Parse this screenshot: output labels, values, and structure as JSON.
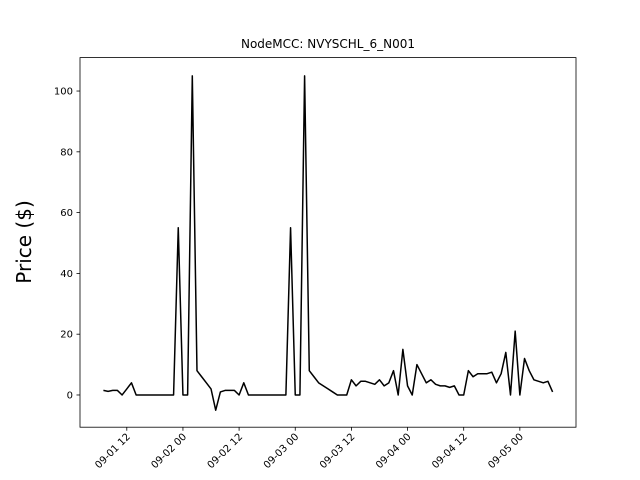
{
  "chart_data": {
    "type": "line",
    "title": "NodeMCC: NVYSCHL_6_N001",
    "y_label": "Price ($)",
    "color": "#000000",
    "x": [
      "09-01 07",
      "09-01 08",
      "09-01 09",
      "09-01 10",
      "09-01 11",
      "09-01 12",
      "09-01 13",
      "09-01 14",
      "09-01 15",
      "09-01 16",
      "09-01 17",
      "09-01 18",
      "09-01 19",
      "09-01 20",
      "09-01 21",
      "09-01 22",
      "09-01 23",
      "09-02 00",
      "09-02 01",
      "09-02 02",
      "09-02 03",
      "09-02 04",
      "09-02 05",
      "09-02 06",
      "09-02 07",
      "09-02 08",
      "09-02 09",
      "09-02 10",
      "09-02 11",
      "09-02 12",
      "09-02 13",
      "09-02 14",
      "09-02 15",
      "09-02 16",
      "09-02 17",
      "09-02 18",
      "09-02 19",
      "09-02 20",
      "09-02 21",
      "09-02 22",
      "09-02 23",
      "09-03 00",
      "09-03 01",
      "09-03 02",
      "09-03 03",
      "09-03 04",
      "09-03 05",
      "09-03 06",
      "09-03 07",
      "09-03 08",
      "09-03 09",
      "09-03 10",
      "09-03 11",
      "09-03 12",
      "09-03 13",
      "09-03 14",
      "09-03 15",
      "09-03 16",
      "09-03 17",
      "09-03 18",
      "09-03 19",
      "09-03 20",
      "09-03 21",
      "09-03 22",
      "09-03 23",
      "09-04 00",
      "09-04 01",
      "09-04 02",
      "09-04 03",
      "09-04 04",
      "09-04 05",
      "09-04 06",
      "09-04 07",
      "09-04 08",
      "09-04 09",
      "09-04 10",
      "09-04 11",
      "09-04 12",
      "09-04 13",
      "09-04 14",
      "09-04 15",
      "09-04 16",
      "09-04 17",
      "09-04 18",
      "09-04 19",
      "09-04 20",
      "09-04 21",
      "09-04 22",
      "09-04 23",
      "09-05 00",
      "09-05 01",
      "09-05 02",
      "09-05 03",
      "09-05 04",
      "09-05 05",
      "09-05 06",
      "09-05 07"
    ],
    "values": [
      1.5,
      1.2,
      1.5,
      1.5,
      0,
      2,
      4,
      0,
      0,
      0,
      0,
      0,
      0,
      0,
      0,
      0,
      55,
      0,
      0,
      105,
      8,
      6,
      4,
      2,
      -5,
      1,
      1.5,
      1.5,
      1.5,
      0,
      4,
      0,
      0,
      0,
      0,
      0,
      0,
      0,
      0,
      0,
      55,
      0,
      0,
      105,
      8,
      6,
      4,
      3,
      2,
      1,
      0,
      0,
      0,
      5,
      3,
      4.5,
      4.5,
      4,
      3.5,
      5,
      3,
      4,
      8,
      0,
      15,
      3,
      0,
      10,
      7,
      4,
      5,
      3.5,
      3,
      3,
      2.5,
      3,
      0,
      0,
      8,
      6,
      7,
      7,
      7,
      7.5,
      4,
      7,
      14,
      0,
      21,
      0,
      12,
      8,
      5,
      4.5,
      4,
      4.5,
      1
    ],
    "xlim": [
      "09-01 02",
      "09-05 12"
    ],
    "xticks": [
      "09-01 12",
      "09-02 00",
      "09-02 12",
      "09-03 00",
      "09-03 12",
      "09-04 00",
      "09-04 12",
      "09-05 00"
    ],
    "ylim": [
      -10.6,
      111
    ],
    "yticks": [
      0,
      20,
      40,
      60,
      80,
      100
    ]
  }
}
